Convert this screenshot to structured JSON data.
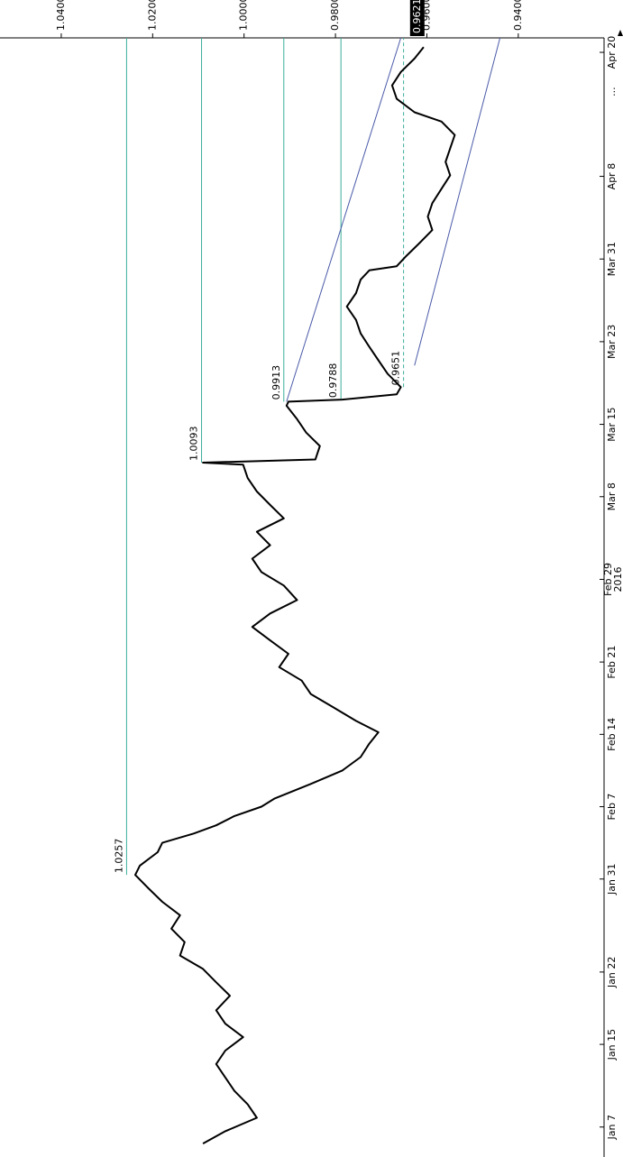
{
  "chart_data": {
    "type": "line",
    "x": [
      5.4,
      6.6,
      7.9,
      9.2,
      10.5,
      11.8,
      13.1,
      14.4,
      15.7,
      17.0,
      18.3,
      19.7,
      21.0,
      22.3,
      23.6,
      24.9,
      26.2,
      27.5,
      28.8,
      30.1,
      31.4,
      32.3,
      33.6,
      34.5,
      35.4,
      36.2,
      37.1,
      38.0,
      38.8,
      40.2,
      41.5,
      42.8,
      44.1,
      45.2,
      46.3,
      47.6,
      48.9,
      50.2,
      51.5,
      52.8,
      54.1,
      55.4,
      56.7,
      58.0,
      59.4,
      60.7,
      62.0,
      63.3,
      64.6,
      65.9,
      67.2,
      68.5,
      69.8,
      71.1,
      71.3,
      71.6,
      72.9,
      74.2,
      75.5,
      76.8,
      77.2,
      77.4,
      77.9,
      78.6,
      79.9,
      81.2,
      82.5,
      83.8,
      85.1,
      86.4,
      87.7,
      89.0,
      89.9,
      90.3,
      91.2,
      92.5,
      93.8,
      95.1,
      96.4,
      97.8,
      99.1,
      100.4,
      101.7,
      103.0,
      104.3,
      105.2,
      106.5,
      107.8,
      109.1,
      110.4,
      111.5
    ],
    "series": [
      {
        "color": "#000000",
        "values": [
          1.009,
          1.0041,
          0.9972,
          0.9992,
          1.0021,
          1.0041,
          1.0061,
          1.0041,
          1.0002,
          1.0041,
          1.0061,
          1.0031,
          1.0061,
          1.009,
          1.014,
          1.013,
          1.0159,
          1.014,
          1.0179,
          1.0209,
          1.0238,
          1.0228,
          1.0189,
          1.0179,
          1.011,
          1.0061,
          1.0021,
          0.9962,
          0.9933,
          0.9854,
          0.9785,
          0.9745,
          0.9726,
          0.9706,
          0.9755,
          0.9804,
          0.9854,
          0.9874,
          0.9923,
          0.9903,
          0.9943,
          0.9982,
          0.9943,
          0.9884,
          0.9913,
          0.9962,
          0.9982,
          0.9943,
          0.9972,
          0.9913,
          0.9943,
          0.9972,
          0.9992,
          1.0002,
          1.009,
          0.9844,
          0.9834,
          0.9864,
          0.9884,
          0.9907,
          0.9903,
          0.9785,
          0.9666,
          0.9657,
          0.9686,
          0.9706,
          0.9726,
          0.9745,
          0.9755,
          0.9775,
          0.9755,
          0.9745,
          0.9726,
          0.9666,
          0.9647,
          0.9617,
          0.9588,
          0.9598,
          0.9588,
          0.9568,
          0.9549,
          0.9559,
          0.9549,
          0.9539,
          0.9568,
          0.9627,
          0.9666,
          0.9676,
          0.9657,
          0.9627,
          0.9607
        ]
      }
    ],
    "xlim": [
      4.1,
      112.4
    ],
    "xticks": [
      {
        "value": 7,
        "label": "Jan 7"
      },
      {
        "value": 15,
        "label": "Jan 15"
      },
      {
        "value": 22,
        "label": "Jan 22"
      },
      {
        "value": 31,
        "label": "Jan 31"
      },
      {
        "value": 38,
        "label": "Feb 7"
      },
      {
        "value": 45,
        "label": "Feb 14"
      },
      {
        "value": 52,
        "label": "Feb 21"
      },
      {
        "value": 60,
        "label": "Feb 29",
        "year": "2016"
      },
      {
        "value": 68,
        "label": "Mar 8"
      },
      {
        "value": 75,
        "label": "Mar 15"
      },
      {
        "value": 83,
        "label": "Mar 23"
      },
      {
        "value": 91,
        "label": "Mar 31"
      },
      {
        "value": 99,
        "label": "Apr 8"
      },
      {
        "value": 111,
        "label": "Apr 20"
      }
    ],
    "x_axis_more": "...",
    "ylim": [
      0.9232,
      1.0534
    ],
    "yticks": [
      {
        "value": 1.04,
        "label": "1.0400"
      },
      {
        "value": 1.02,
        "label": "1.0200"
      },
      {
        "value": 1.0,
        "label": "1.0000"
      },
      {
        "value": 0.98,
        "label": "0.9800"
      },
      {
        "value": 0.96,
        "label": "0.9600"
      },
      {
        "value": 0.94,
        "label": "0.9400"
      }
    ],
    "last_price": 0.9621,
    "levels_color": "#3aae9a",
    "levels": [
      {
        "value": 1.0257,
        "from": 31.4
      },
      {
        "value": 1.0093,
        "from": 71.3
      },
      {
        "value": 0.9913,
        "from": 77.2
      },
      {
        "value": 0.9788,
        "from": 77.4
      },
      {
        "value": 0.9651,
        "from": 78.6,
        "dashed": true
      }
    ],
    "channel_color": "#4a5aa8",
    "channels": [
      {
        "x": [
          77.2,
          112.4
        ],
        "y": [
          0.9907,
          0.9657
        ]
      },
      {
        "x": [
          80.7,
          112.4
        ],
        "y": [
          0.9627,
          0.944
        ]
      }
    ]
  }
}
